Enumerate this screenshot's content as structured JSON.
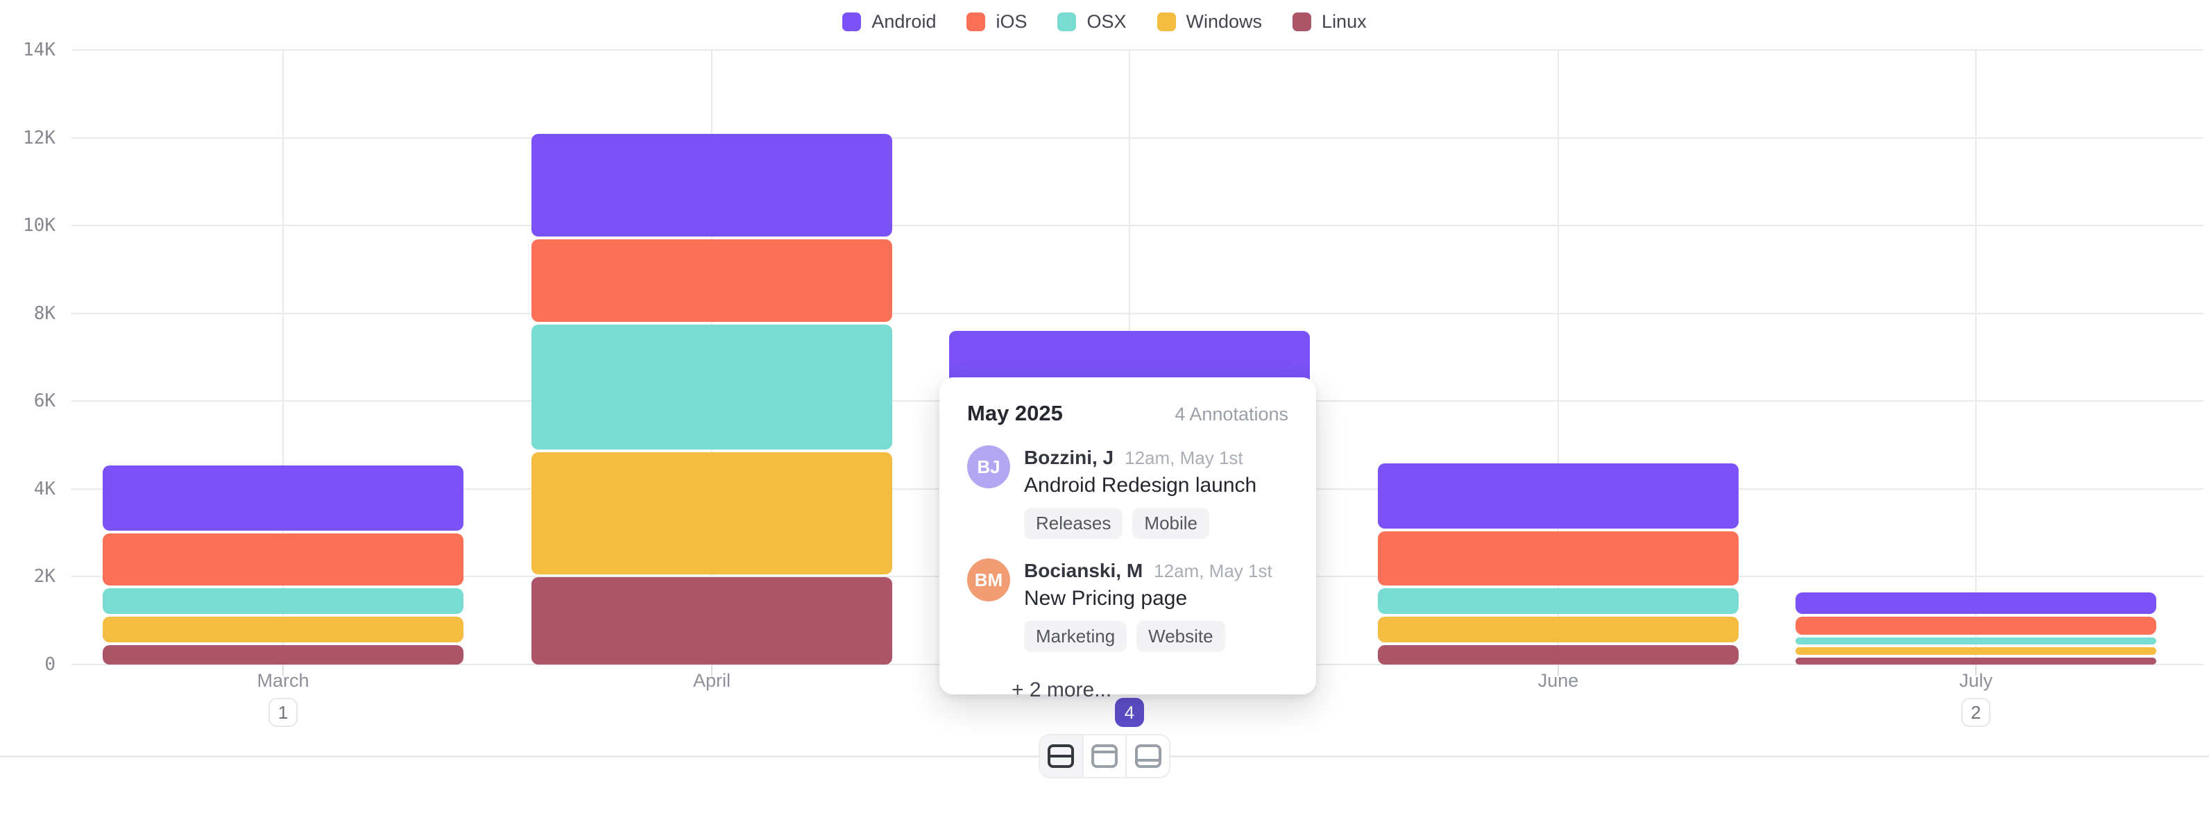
{
  "legend": {
    "items": [
      {
        "label": "Android",
        "color": "#7A52F6"
      },
      {
        "label": "iOS",
        "color": "#FB7157"
      },
      {
        "label": "OSX",
        "color": "#78DCD2"
      },
      {
        "label": "Windows",
        "color": "#F4BC40"
      },
      {
        "label": "Linux",
        "color": "#AC5569"
      }
    ]
  },
  "chart_data": {
    "type": "bar",
    "stacked": true,
    "categories": [
      "March",
      "April",
      "May",
      "June",
      "July"
    ],
    "series": [
      {
        "name": "Android",
        "color": "#7A52F6",
        "values": [
          1550,
          2400,
          null,
          1550,
          550
        ]
      },
      {
        "name": "iOS",
        "color": "#FB7157",
        "values": [
          1250,
          1950,
          null,
          1300,
          470
        ]
      },
      {
        "name": "OSX",
        "color": "#78DCD2",
        "values": [
          650,
          2900,
          null,
          650,
          220
        ]
      },
      {
        "name": "Windows",
        "color": "#F4BC40",
        "values": [
          650,
          2850,
          null,
          650,
          240
        ]
      },
      {
        "name": "Linux",
        "color": "#AC5569",
        "values": [
          500,
          2050,
          null,
          500,
          220
        ]
      }
    ],
    "may_visible_total": 7600,
    "may_note": "May bar breakdown hidden behind annotations tooltip; only the purple (Android-colored) top of the ~7.6K stack is visible",
    "title": "",
    "xlabel": "",
    "ylabel": "",
    "ylim": [
      0,
      14000
    ],
    "y_tick_step": 2000,
    "y_tick_labels": [
      "0",
      "2K",
      "4K",
      "6K",
      "8K",
      "10K",
      "12K",
      "14K"
    ],
    "grid": true,
    "legend_position": "top"
  },
  "x_axis": {
    "labels": [
      {
        "month": "March",
        "badge": "1",
        "highlight": false
      },
      {
        "month": "April",
        "badge": null,
        "highlight": false
      },
      {
        "month": "May",
        "badge": "4",
        "highlight": true
      },
      {
        "month": "June",
        "badge": null,
        "highlight": false
      },
      {
        "month": "July",
        "badge": "2",
        "highlight": false
      }
    ],
    "badge_highlight_color": "#5D4EC9"
  },
  "tooltip": {
    "title": "May 2025",
    "count_label": "4 Annotations",
    "entries": [
      {
        "initials": "BJ",
        "avatar_color": "#B3A6F3",
        "author": "Bozzini, J",
        "timestamp": "12am, May 1st",
        "text": "Android Redesign launch",
        "tags": [
          "Releases",
          "Mobile"
        ]
      },
      {
        "initials": "BM",
        "avatar_color": "#F19C72",
        "author": "Bocianski, M",
        "timestamp": "12am, May 1st",
        "text": "New Pricing page",
        "tags": [
          "Marketing",
          "Website"
        ]
      }
    ],
    "more_label": "+ 2 more..."
  },
  "toolbar": {
    "buttons": [
      {
        "icon": "row-split-middle-icon",
        "variant": "mid",
        "selected": true
      },
      {
        "icon": "top-panel-icon",
        "variant": "top",
        "selected": false
      },
      {
        "icon": "bottom-panel-icon",
        "variant": "bottom",
        "selected": false
      }
    ]
  }
}
